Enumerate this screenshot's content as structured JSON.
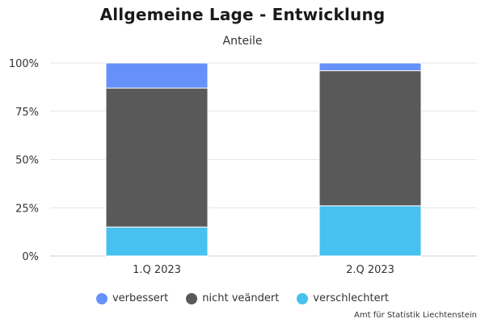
{
  "chart_data": {
    "type": "bar",
    "stacked": true,
    "percent": true,
    "title": "Allgemeine Lage - Entwicklung",
    "subtitle": "Anteile",
    "categories": [
      "1.Q 2023",
      "2.Q 2023"
    ],
    "series": [
      {
        "name": "verschlechtert",
        "color": "#47c1f0",
        "values": [
          15,
          26
        ]
      },
      {
        "name": "nicht veändert",
        "color": "#595959",
        "values": [
          72,
          70
        ]
      },
      {
        "name": "verbessert",
        "color": "#6691fb",
        "values": [
          13,
          4
        ]
      }
    ],
    "legend_order": [
      "verbessert",
      "nicht veändert",
      "verschlechtert"
    ],
    "y_ticks": [
      "0%",
      "25%",
      "50%",
      "75%",
      "100%"
    ],
    "ylim": [
      0,
      100
    ],
    "grid": true,
    "legend_position": "bottom",
    "credit": "Amt für Statistik Liechtenstein"
  }
}
